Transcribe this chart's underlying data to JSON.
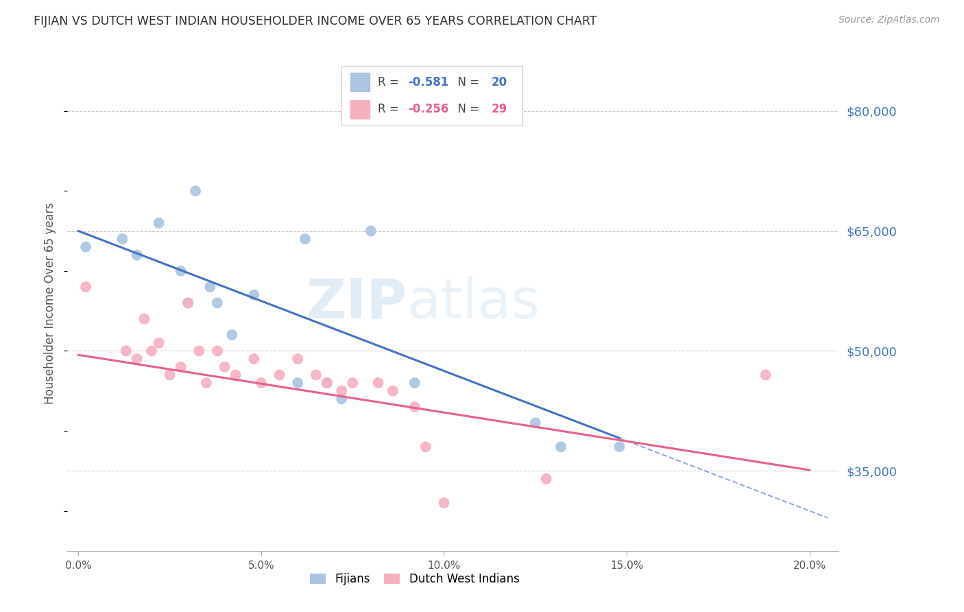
{
  "title": "FIJIAN VS DUTCH WEST INDIAN HOUSEHOLDER INCOME OVER 65 YEARS CORRELATION CHART",
  "source": "Source: ZipAtlas.com",
  "ylabel": "Householder Income Over 65 years",
  "xlabel_ticks": [
    "0.0%",
    "5.0%",
    "10.0%",
    "15.0%",
    "20.0%"
  ],
  "xlabel_values": [
    0.0,
    0.05,
    0.1,
    0.15,
    0.2
  ],
  "ytick_labels": [
    "$35,000",
    "$50,000",
    "$65,000",
    "$80,000"
  ],
  "ytick_values": [
    35000,
    50000,
    65000,
    80000
  ],
  "ylim": [
    25000,
    87000
  ],
  "xlim": [
    -0.003,
    0.208
  ],
  "fijian_color": "#aac4e2",
  "dutch_color": "#f5b0c0",
  "line_blue": "#4472c4",
  "line_pink": "#e8608a",
  "fijian_R": -0.581,
  "fijian_N": 20,
  "dutch_R": -0.256,
  "dutch_N": 29,
  "fijian_x": [
    0.002,
    0.012,
    0.016,
    0.022,
    0.028,
    0.03,
    0.032,
    0.036,
    0.038,
    0.042,
    0.048,
    0.06,
    0.062,
    0.068,
    0.072,
    0.08,
    0.092,
    0.125,
    0.132,
    0.148
  ],
  "fijian_y": [
    63000,
    64000,
    62000,
    66000,
    60000,
    56000,
    70000,
    58000,
    56000,
    52000,
    57000,
    46000,
    64000,
    46000,
    44000,
    65000,
    46000,
    41000,
    38000,
    38000
  ],
  "dutch_x": [
    0.002,
    0.013,
    0.016,
    0.018,
    0.02,
    0.022,
    0.025,
    0.028,
    0.03,
    0.033,
    0.035,
    0.038,
    0.04,
    0.043,
    0.048,
    0.05,
    0.055,
    0.06,
    0.065,
    0.068,
    0.072,
    0.075,
    0.082,
    0.086,
    0.092,
    0.095,
    0.1,
    0.128,
    0.188
  ],
  "dutch_y": [
    58000,
    50000,
    49000,
    54000,
    50000,
    51000,
    47000,
    48000,
    56000,
    50000,
    46000,
    50000,
    48000,
    47000,
    49000,
    46000,
    47000,
    49000,
    47000,
    46000,
    45000,
    46000,
    46000,
    45000,
    43000,
    38000,
    31000,
    34000,
    47000
  ],
  "fijian_intercept": 65000,
  "fijian_slope": -175000,
  "dutch_intercept": 49500,
  "dutch_slope": -72000,
  "background_color": "#ffffff",
  "grid_color": "#cccccc",
  "title_color": "#333333",
  "axis_label_color": "#555555",
  "ytick_color": "#4472c4",
  "watermark_zip": "ZIP",
  "watermark_atlas": "atlas",
  "marker_size": 130
}
